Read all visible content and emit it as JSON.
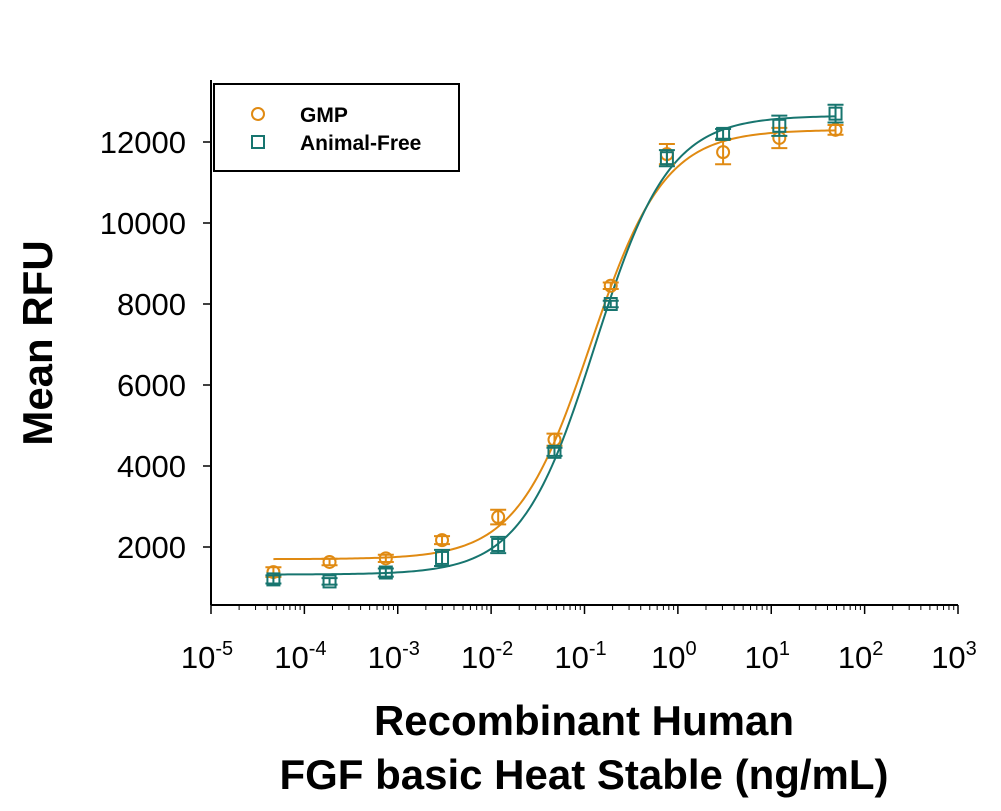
{
  "chart_data": {
    "type": "scatter",
    "title": "",
    "xlabel_lines": [
      "Recombinant Human",
      "FGF basic Heat Stable (ng/mL)"
    ],
    "ylabel": "Mean RFU",
    "xscale": "log",
    "xlim": [
      1e-05,
      1000
    ],
    "ylim": [
      570,
      13500
    ],
    "x_ticks": [
      {
        "value": 1e-05,
        "base": "10",
        "exp": "-5"
      },
      {
        "value": 0.0001,
        "base": "10",
        "exp": "-4"
      },
      {
        "value": 0.001,
        "base": "10",
        "exp": "-3"
      },
      {
        "value": 0.01,
        "base": "10",
        "exp": "-2"
      },
      {
        "value": 0.1,
        "base": "10",
        "exp": "-1"
      },
      {
        "value": 1,
        "base": "10",
        "exp": "0"
      },
      {
        "value": 10,
        "base": "10",
        "exp": "1"
      },
      {
        "value": 100,
        "base": "10",
        "exp": "2"
      },
      {
        "value": 1000,
        "base": "10",
        "exp": "3"
      }
    ],
    "y_ticks": [
      2000,
      4000,
      6000,
      8000,
      10000,
      12000
    ],
    "grid": false,
    "legend": {
      "position": "top-left",
      "boxed": true
    },
    "x": [
      4.66e-05,
      0.000186,
      0.000745,
      0.00298,
      0.0119,
      0.0477,
      0.191,
      0.763,
      3.05,
      12.2,
      48.8
    ],
    "series": [
      {
        "name": "GMP",
        "marker": "circle",
        "color": "#E08A12",
        "values": [
          1380,
          1630,
          1720,
          2170,
          2740,
          4650,
          8450,
          11700,
          11750,
          12100,
          12300
        ],
        "errors": [
          120,
          80,
          90,
          100,
          180,
          150,
          80,
          250,
          300,
          250,
          120
        ],
        "fit": {
          "model": "4PL",
          "bottom": 1700,
          "top": 12300,
          "ec50": 0.116,
          "hill": 1.1
        }
      },
      {
        "name": "Animal-Free",
        "marker": "square",
        "color": "#17756F",
        "values": [
          1200,
          1150,
          1370,
          1730,
          2050,
          4350,
          8000,
          11600,
          12200,
          12400,
          12700
        ],
        "errors": [
          100,
          80,
          100,
          200,
          200,
          100,
          80,
          200,
          120,
          250,
          220
        ],
        "fit": {
          "model": "4PL",
          "bottom": 1320,
          "top": 12650,
          "ec50": 0.13,
          "hill": 1.1
        }
      }
    ]
  }
}
